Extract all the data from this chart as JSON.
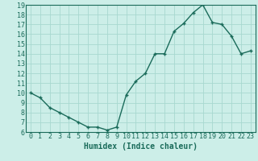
{
  "x": [
    0,
    1,
    2,
    3,
    4,
    5,
    6,
    7,
    8,
    9,
    10,
    11,
    12,
    13,
    14,
    15,
    16,
    17,
    18,
    19,
    20,
    21,
    22,
    23
  ],
  "y": [
    10,
    9.5,
    8.5,
    8,
    7.5,
    7,
    6.5,
    6.5,
    6.2,
    6.5,
    9.8,
    11.2,
    12,
    14,
    14,
    16.3,
    17.1,
    18.2,
    19,
    17.2,
    17,
    15.8,
    14,
    14.3
  ],
  "bg_color": "#cceee8",
  "line_color": "#1a6b5a",
  "marker": "+",
  "xlabel": "Humidex (Indice chaleur)",
  "ylim": [
    6,
    19
  ],
  "xlim": [
    -0.5,
    23.5
  ],
  "yticks": [
    6,
    7,
    8,
    9,
    10,
    11,
    12,
    13,
    14,
    15,
    16,
    17,
    18,
    19
  ],
  "xticks": [
    0,
    1,
    2,
    3,
    4,
    5,
    6,
    7,
    8,
    9,
    10,
    11,
    12,
    13,
    14,
    15,
    16,
    17,
    18,
    19,
    20,
    21,
    22,
    23
  ],
  "grid_color": "#a8d8d0",
  "label_fontsize": 7,
  "tick_fontsize": 6
}
